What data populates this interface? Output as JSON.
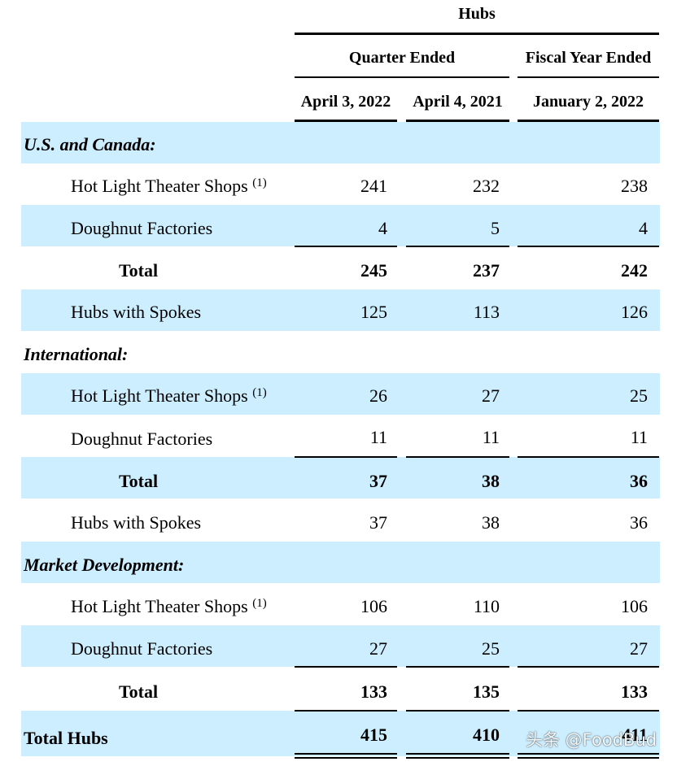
{
  "header": {
    "title": "Hubs",
    "group1": "Quarter Ended",
    "group2": "Fiscal Year Ended",
    "col1": "April 3, 2022",
    "col2": "April 4, 2021",
    "col3": "January 2, 2022"
  },
  "footnote_marker": "(1)",
  "sections": [
    {
      "title": "U.S. and Canada:",
      "rows": [
        {
          "label": "Hot Light Theater Shops",
          "v1": "241",
          "v2": "232",
          "v3": "238"
        },
        {
          "label": "Doughnut Factories",
          "v1": "4",
          "v2": "5",
          "v3": "4"
        },
        {
          "label": "Total",
          "v1": "245",
          "v2": "237",
          "v3": "242"
        },
        {
          "label": "Hubs with Spokes",
          "v1": "125",
          "v2": "113",
          "v3": "126"
        }
      ]
    },
    {
      "title": "International:",
      "rows": [
        {
          "label": "Hot Light Theater Shops",
          "v1": "26",
          "v2": "27",
          "v3": "25"
        },
        {
          "label": "Doughnut Factories",
          "v1": "11",
          "v2": "11",
          "v3": "11"
        },
        {
          "label": "Total",
          "v1": "37",
          "v2": "38",
          "v3": "36"
        },
        {
          "label": "Hubs with Spokes",
          "v1": "37",
          "v2": "38",
          "v3": "36"
        }
      ]
    },
    {
      "title": "Market Development:",
      "rows": [
        {
          "label": "Hot Light Theater Shops",
          "v1": "106",
          "v2": "110",
          "v3": "106"
        },
        {
          "label": "Doughnut Factories",
          "v1": "27",
          "v2": "25",
          "v3": "27"
        },
        {
          "label": "Total",
          "v1": "133",
          "v2": "135",
          "v3": "133"
        }
      ]
    }
  ],
  "grand_total": {
    "label": "Total Hubs",
    "v1": "415",
    "v2": "410",
    "v3": "411"
  },
  "watermark": "头条 @FoodBud",
  "colors": {
    "band": "#cceeff"
  }
}
